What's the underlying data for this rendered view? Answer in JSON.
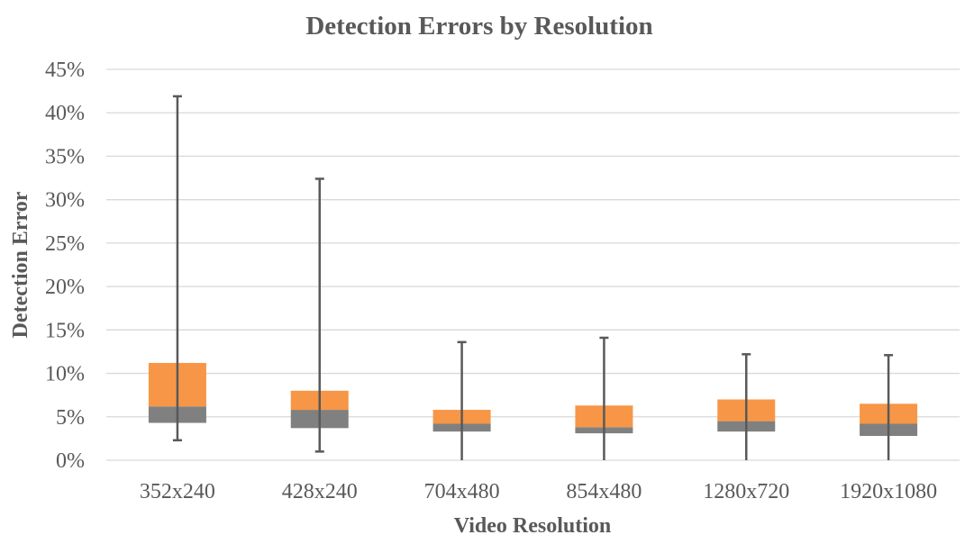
{
  "chart_data": {
    "type": "box",
    "title": "Detection Errors by Resolution",
    "xlabel": "Video Resolution",
    "ylabel": "Detection Error",
    "categories": [
      "352x240",
      "428x240",
      "704x480",
      "854x480",
      "1280x720",
      "1920x1080"
    ],
    "ylim": [
      0,
      0.45
    ],
    "yticks": [
      0,
      0.05,
      0.1,
      0.15,
      0.2,
      0.25,
      0.3,
      0.35,
      0.4,
      0.45
    ],
    "ytick_labels": [
      "0%",
      "5%",
      "10%",
      "15%",
      "20%",
      "25%",
      "30%",
      "35%",
      "40%",
      "45%"
    ],
    "grid": true,
    "legend": "none",
    "series": [
      {
        "min": 0.023,
        "q1": 0.043,
        "median": 0.062,
        "q3": 0.112,
        "max": 0.419
      },
      {
        "min": 0.01,
        "q1": 0.037,
        "median": 0.058,
        "q3": 0.08,
        "max": 0.324
      },
      {
        "min": 0.0,
        "q1": 0.033,
        "median": 0.042,
        "q3": 0.058,
        "max": 0.136
      },
      {
        "min": 0.0,
        "q1": 0.031,
        "median": 0.038,
        "q3": 0.063,
        "max": 0.141
      },
      {
        "min": 0.0,
        "q1": 0.033,
        "median": 0.045,
        "q3": 0.07,
        "max": 0.122
      },
      {
        "min": 0.0,
        "q1": 0.028,
        "median": 0.042,
        "q3": 0.065,
        "max": 0.121
      }
    ],
    "colors": {
      "lower_box": "#808080",
      "upper_box": "#F79646",
      "whisker": "#595959",
      "grid": "#D9D9D9",
      "text": "#595959"
    }
  }
}
